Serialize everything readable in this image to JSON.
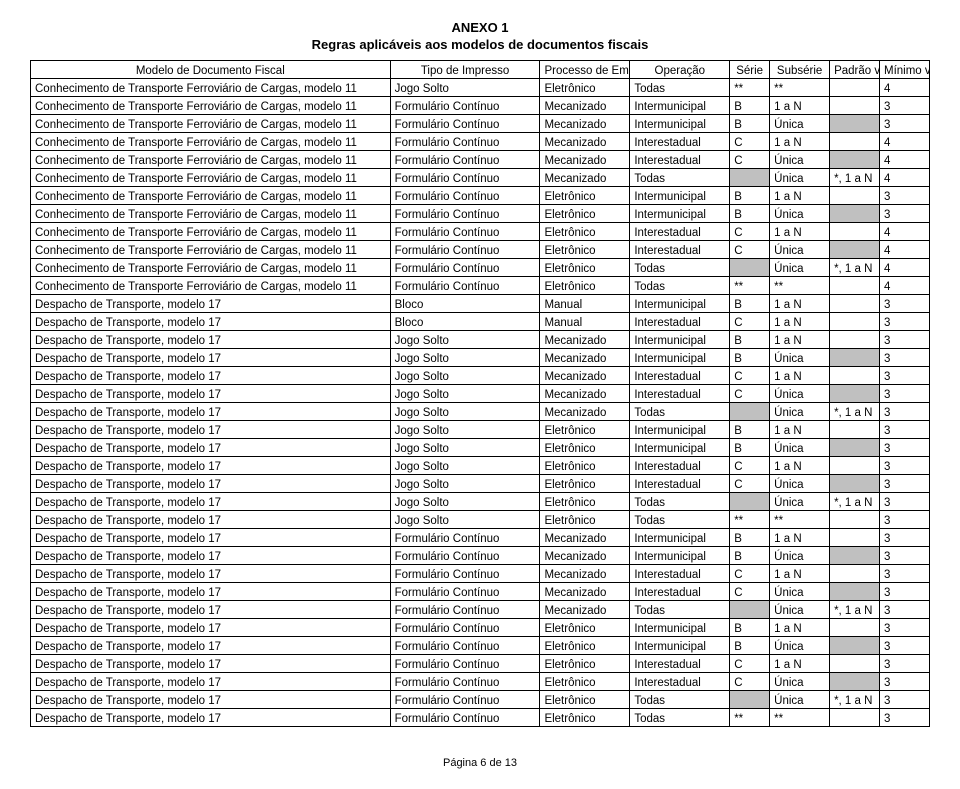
{
  "title": "ANEXO 1",
  "subtitle": "Regras aplicáveis aos modelos de documentos fiscais",
  "footer": "Página 6 de 13",
  "headers": {
    "modelo": "Modelo de Documento Fiscal",
    "tipo": "Tipo de Impresso",
    "processo": "Processo de Emissão",
    "operacao": "Operação",
    "serie": "Série",
    "subserie": "Subsérie",
    "padrao": "Padrão vias",
    "minimo": "Mínimo vias"
  },
  "rows": [
    {
      "modelo": "Conhecimento de Transporte Ferroviário de Cargas, modelo 11",
      "tipo": "Jogo Solto",
      "processo": "Eletrônico",
      "operacao": "Todas",
      "serie": "**",
      "subserie": "**",
      "padrao": "",
      "minimo": "4"
    },
    {
      "modelo": "Conhecimento de Transporte Ferroviário de Cargas, modelo 11",
      "tipo": "Formulário Contínuo",
      "processo": "Mecanizado",
      "operacao": "Intermunicipal",
      "serie": "B",
      "subserie": "1 a N",
      "padrao": "",
      "minimo": "3"
    },
    {
      "modelo": "Conhecimento de Transporte Ferroviário de Cargas, modelo 11",
      "tipo": "Formulário Contínuo",
      "processo": "Mecanizado",
      "operacao": "Intermunicipal",
      "serie": "B",
      "subserie": "Única",
      "padrao": "",
      "minimo": "3",
      "shadePadrao": true
    },
    {
      "modelo": "Conhecimento de Transporte Ferroviário de Cargas, modelo 11",
      "tipo": "Formulário Contínuo",
      "processo": "Mecanizado",
      "operacao": "Interestadual",
      "serie": "C",
      "subserie": "1 a N",
      "padrao": "",
      "minimo": "4"
    },
    {
      "modelo": "Conhecimento de Transporte Ferroviário de Cargas, modelo 11",
      "tipo": "Formulário Contínuo",
      "processo": "Mecanizado",
      "operacao": "Interestadual",
      "serie": "C",
      "subserie": "Única",
      "padrao": "",
      "minimo": "4",
      "shadePadrao": true
    },
    {
      "modelo": "Conhecimento de Transporte Ferroviário de Cargas, modelo 11",
      "tipo": "Formulário Contínuo",
      "processo": "Mecanizado",
      "operacao": "Todas",
      "serie": "",
      "subserie": "Única",
      "padrao": "*, 1 a N",
      "minimo": "4",
      "shadeSerie": true
    },
    {
      "modelo": "Conhecimento de Transporte Ferroviário de Cargas, modelo 11",
      "tipo": "Formulário Contínuo",
      "processo": "Eletrônico",
      "operacao": "Intermunicipal",
      "serie": "B",
      "subserie": "1 a N",
      "padrao": "",
      "minimo": "3"
    },
    {
      "modelo": "Conhecimento de Transporte Ferroviário de Cargas, modelo 11",
      "tipo": "Formulário Contínuo",
      "processo": "Eletrônico",
      "operacao": "Intermunicipal",
      "serie": "B",
      "subserie": "Única",
      "padrao": "",
      "minimo": "3",
      "shadePadrao": true
    },
    {
      "modelo": "Conhecimento de Transporte Ferroviário de Cargas, modelo 11",
      "tipo": "Formulário Contínuo",
      "processo": "Eletrônico",
      "operacao": "Interestadual",
      "serie": "C",
      "subserie": "1 a N",
      "padrao": "",
      "minimo": "4"
    },
    {
      "modelo": "Conhecimento de Transporte Ferroviário de Cargas, modelo 11",
      "tipo": "Formulário Contínuo",
      "processo": "Eletrônico",
      "operacao": "Interestadual",
      "serie": "C",
      "subserie": "Única",
      "padrao": "",
      "minimo": "4",
      "shadePadrao": true
    },
    {
      "modelo": "Conhecimento de Transporte Ferroviário de Cargas, modelo 11",
      "tipo": "Formulário Contínuo",
      "processo": "Eletrônico",
      "operacao": "Todas",
      "serie": "",
      "subserie": "Única",
      "padrao": "*, 1 a N",
      "minimo": "4",
      "shadeSerie": true
    },
    {
      "modelo": "Conhecimento de Transporte Ferroviário de Cargas, modelo 11",
      "tipo": "Formulário Contínuo",
      "processo": "Eletrônico",
      "operacao": "Todas",
      "serie": "**",
      "subserie": "**",
      "padrao": "",
      "minimo": "4"
    },
    {
      "modelo": "Despacho de Transporte, modelo 17",
      "tipo": "Bloco",
      "processo": "Manual",
      "operacao": "Intermunicipal",
      "serie": "B",
      "subserie": "1 a N",
      "padrao": "",
      "minimo": "3"
    },
    {
      "modelo": "Despacho de Transporte, modelo 17",
      "tipo": "Bloco",
      "processo": "Manual",
      "operacao": "Interestadual",
      "serie": "C",
      "subserie": "1 a N",
      "padrao": "",
      "minimo": "3"
    },
    {
      "modelo": "Despacho de Transporte, modelo 17",
      "tipo": "Jogo Solto",
      "processo": "Mecanizado",
      "operacao": "Intermunicipal",
      "serie": "B",
      "subserie": "1 a N",
      "padrao": "",
      "minimo": "3"
    },
    {
      "modelo": "Despacho de Transporte, modelo 17",
      "tipo": "Jogo Solto",
      "processo": "Mecanizado",
      "operacao": "Intermunicipal",
      "serie": "B",
      "subserie": "Única",
      "padrao": "",
      "minimo": "3",
      "shadePadrao": true
    },
    {
      "modelo": "Despacho de Transporte, modelo 17",
      "tipo": "Jogo Solto",
      "processo": "Mecanizado",
      "operacao": "Interestadual",
      "serie": "C",
      "subserie": "1 a N",
      "padrao": "",
      "minimo": "3"
    },
    {
      "modelo": "Despacho de Transporte, modelo 17",
      "tipo": "Jogo Solto",
      "processo": "Mecanizado",
      "operacao": "Interestadual",
      "serie": "C",
      "subserie": "Única",
      "padrao": "",
      "minimo": "3",
      "shadePadrao": true
    },
    {
      "modelo": "Despacho de Transporte, modelo 17",
      "tipo": "Jogo Solto",
      "processo": "Mecanizado",
      "operacao": "Todas",
      "serie": "",
      "subserie": "Única",
      "padrao": "*, 1 a N",
      "minimo": "3",
      "shadeSerie": true
    },
    {
      "modelo": "Despacho de Transporte, modelo 17",
      "tipo": "Jogo Solto",
      "processo": "Eletrônico",
      "operacao": "Intermunicipal",
      "serie": "B",
      "subserie": "1 a N",
      "padrao": "",
      "minimo": "3"
    },
    {
      "modelo": "Despacho de Transporte, modelo 17",
      "tipo": "Jogo Solto",
      "processo": "Eletrônico",
      "operacao": "Intermunicipal",
      "serie": "B",
      "subserie": "Única",
      "padrao": "",
      "minimo": "3",
      "shadePadrao": true
    },
    {
      "modelo": "Despacho de Transporte, modelo 17",
      "tipo": "Jogo Solto",
      "processo": "Eletrônico",
      "operacao": "Interestadual",
      "serie": "C",
      "subserie": "1 a N",
      "padrao": "",
      "minimo": "3"
    },
    {
      "modelo": "Despacho de Transporte, modelo 17",
      "tipo": "Jogo Solto",
      "processo": "Eletrônico",
      "operacao": "Interestadual",
      "serie": "C",
      "subserie": "Única",
      "padrao": "",
      "minimo": "3",
      "shadePadrao": true
    },
    {
      "modelo": "Despacho de Transporte, modelo 17",
      "tipo": "Jogo Solto",
      "processo": "Eletrônico",
      "operacao": "Todas",
      "serie": "",
      "subserie": "Única",
      "padrao": "*, 1 a N",
      "minimo": "3",
      "shadeSerie": true
    },
    {
      "modelo": "Despacho de Transporte, modelo 17",
      "tipo": "Jogo Solto",
      "processo": "Eletrônico",
      "operacao": "Todas",
      "serie": "**",
      "subserie": "**",
      "padrao": "",
      "minimo": "3"
    },
    {
      "modelo": "Despacho de Transporte, modelo 17",
      "tipo": "Formulário Contínuo",
      "processo": "Mecanizado",
      "operacao": "Intermunicipal",
      "serie": "B",
      "subserie": "1 a N",
      "padrao": "",
      "minimo": "3"
    },
    {
      "modelo": "Despacho de Transporte, modelo 17",
      "tipo": "Formulário Contínuo",
      "processo": "Mecanizado",
      "operacao": "Intermunicipal",
      "serie": "B",
      "subserie": "Única",
      "padrao": "",
      "minimo": "3",
      "shadePadrao": true
    },
    {
      "modelo": "Despacho de Transporte, modelo 17",
      "tipo": "Formulário Contínuo",
      "processo": "Mecanizado",
      "operacao": "Interestadual",
      "serie": "C",
      "subserie": "1 a N",
      "padrao": "",
      "minimo": "3"
    },
    {
      "modelo": "Despacho de Transporte, modelo 17",
      "tipo": "Formulário Contínuo",
      "processo": "Mecanizado",
      "operacao": "Interestadual",
      "serie": "C",
      "subserie": "Única",
      "padrao": "",
      "minimo": "3",
      "shadePadrao": true
    },
    {
      "modelo": "Despacho de Transporte, modelo 17",
      "tipo": "Formulário Contínuo",
      "processo": "Mecanizado",
      "operacao": "Todas",
      "serie": "",
      "subserie": "Única",
      "padrao": "*, 1 a N",
      "minimo": "3",
      "shadeSerie": true
    },
    {
      "modelo": "Despacho de Transporte, modelo 17",
      "tipo": "Formulário Contínuo",
      "processo": "Eletrônico",
      "operacao": "Intermunicipal",
      "serie": "B",
      "subserie": "1 a N",
      "padrao": "",
      "minimo": "3"
    },
    {
      "modelo": "Despacho de Transporte, modelo 17",
      "tipo": "Formulário Contínuo",
      "processo": "Eletrônico",
      "operacao": "Intermunicipal",
      "serie": "B",
      "subserie": "Única",
      "padrao": "",
      "minimo": "3",
      "shadePadrao": true
    },
    {
      "modelo": "Despacho de Transporte, modelo 17",
      "tipo": "Formulário Contínuo",
      "processo": "Eletrônico",
      "operacao": "Interestadual",
      "serie": "C",
      "subserie": "1 a N",
      "padrao": "",
      "minimo": "3"
    },
    {
      "modelo": "Despacho de Transporte, modelo 17",
      "tipo": "Formulário Contínuo",
      "processo": "Eletrônico",
      "operacao": "Interestadual",
      "serie": "C",
      "subserie": "Única",
      "padrao": "",
      "minimo": "3",
      "shadePadrao": true
    },
    {
      "modelo": "Despacho de Transporte, modelo 17",
      "tipo": "Formulário Contínuo",
      "processo": "Eletrônico",
      "operacao": "Todas",
      "serie": "",
      "subserie": "Única",
      "padrao": "*, 1 a N",
      "minimo": "3",
      "shadeSerie": true
    },
    {
      "modelo": "Despacho de Transporte, modelo 17",
      "tipo": "Formulário Contínuo",
      "processo": "Eletrônico",
      "operacao": "Todas",
      "serie": "**",
      "subserie": "**",
      "padrao": "",
      "minimo": "3"
    }
  ]
}
